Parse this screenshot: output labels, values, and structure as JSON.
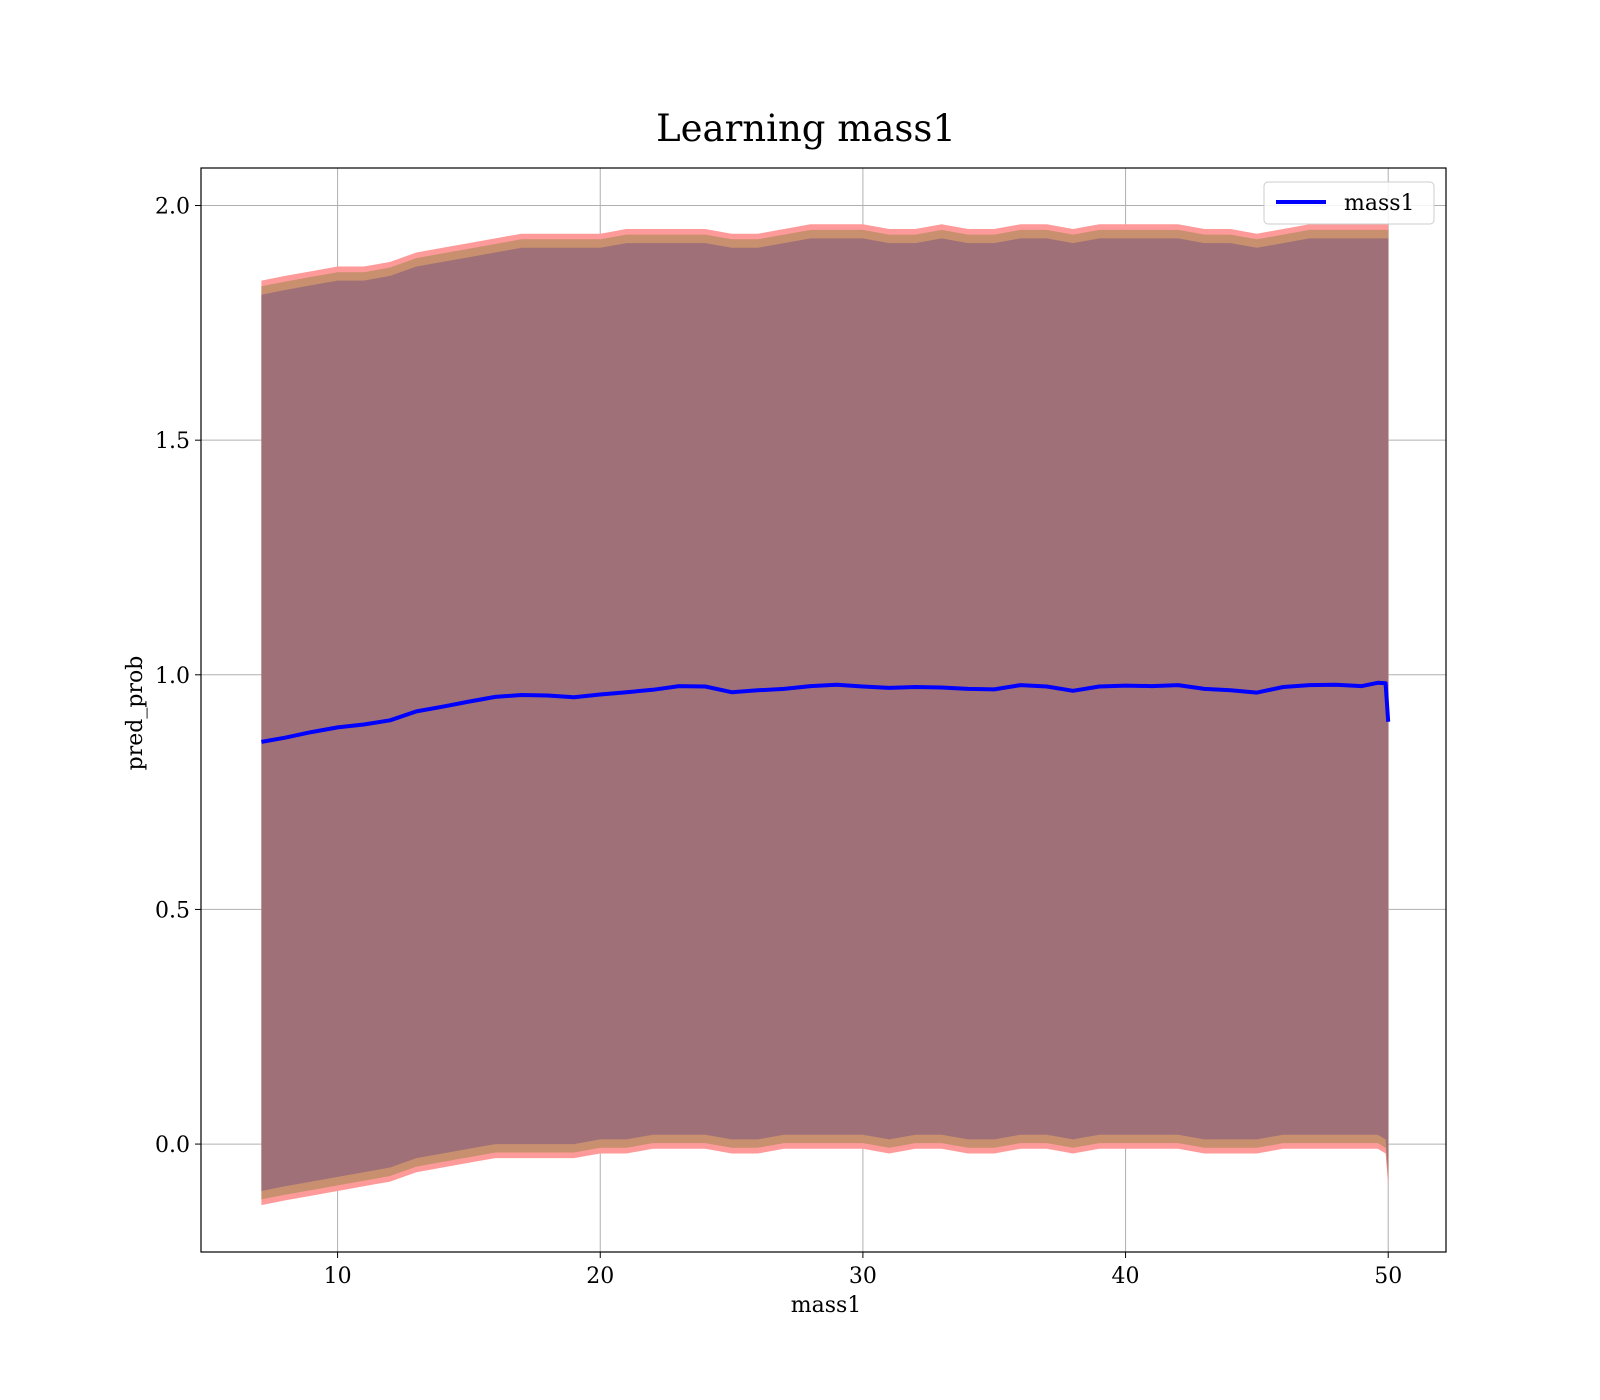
{
  "chart_data": {
    "type": "line",
    "title": "Learning mass1",
    "xlabel": "mass1",
    "ylabel": "pred_prob",
    "xlim": [
      4.8,
      52.2
    ],
    "ylim": [
      -0.23,
      2.08
    ],
    "xticks": [
      10,
      20,
      30,
      40,
      50
    ],
    "yticks": [
      0.0,
      0.5,
      1.0,
      1.5,
      2.0
    ],
    "xtick_labels": [
      "10",
      "20",
      "30",
      "40",
      "50"
    ],
    "ytick_labels": [
      "0.0",
      "0.5",
      "1.0",
      "1.5",
      "2.0"
    ],
    "grid": true,
    "legend_position": "top-right",
    "colors": {
      "line": "#0000ff",
      "band_outer": "#ff9a9a",
      "band_mid": "#c8906e",
      "band_inner": "#a07078",
      "grid": "#b0b0b0"
    },
    "series": [
      {
        "name": "mass1",
        "x": [
          7.1,
          8,
          9,
          10,
          11,
          12,
          13,
          14,
          15,
          16,
          17,
          18,
          19,
          20,
          21,
          22,
          23,
          24,
          25,
          26,
          27,
          28,
          29,
          30,
          31,
          32,
          33,
          34,
          35,
          36,
          37,
          38,
          39,
          40,
          41,
          42,
          43,
          44,
          45,
          46,
          47,
          48,
          49,
          49.6,
          49.9,
          50.0
        ],
        "y": [
          0.857,
          0.866,
          0.878,
          0.888,
          0.894,
          0.903,
          0.922,
          0.932,
          0.943,
          0.953,
          0.957,
          0.956,
          0.952,
          0.958,
          0.963,
          0.968,
          0.976,
          0.975,
          0.963,
          0.967,
          0.97,
          0.976,
          0.979,
          0.975,
          0.972,
          0.974,
          0.973,
          0.97,
          0.969,
          0.978,
          0.975,
          0.966,
          0.975,
          0.977,
          0.976,
          0.978,
          0.97,
          0.967,
          0.962,
          0.974,
          0.978,
          0.979,
          0.976,
          0.983,
          0.982,
          0.9
        ],
        "upper": [
          1.84,
          1.85,
          1.86,
          1.87,
          1.87,
          1.88,
          1.9,
          1.91,
          1.92,
          1.93,
          1.94,
          1.94,
          1.94,
          1.94,
          1.95,
          1.95,
          1.95,
          1.95,
          1.94,
          1.94,
          1.95,
          1.96,
          1.96,
          1.96,
          1.95,
          1.95,
          1.96,
          1.95,
          1.95,
          1.96,
          1.96,
          1.95,
          1.96,
          1.96,
          1.96,
          1.96,
          1.95,
          1.95,
          1.94,
          1.95,
          1.96,
          1.96,
          1.96,
          1.96,
          1.96,
          1.96
        ],
        "lower": [
          -0.13,
          -0.12,
          -0.11,
          -0.1,
          -0.09,
          -0.08,
          -0.06,
          -0.05,
          -0.04,
          -0.03,
          -0.03,
          -0.03,
          -0.03,
          -0.02,
          -0.02,
          -0.01,
          -0.01,
          -0.01,
          -0.02,
          -0.02,
          -0.01,
          -0.01,
          -0.01,
          -0.01,
          -0.02,
          -0.01,
          -0.01,
          -0.02,
          -0.02,
          -0.01,
          -0.01,
          -0.02,
          -0.01,
          -0.01,
          -0.01,
          -0.01,
          -0.02,
          -0.02,
          -0.02,
          -0.01,
          -0.01,
          -0.01,
          -0.01,
          -0.01,
          -0.02,
          -0.09
        ]
      }
    ]
  }
}
